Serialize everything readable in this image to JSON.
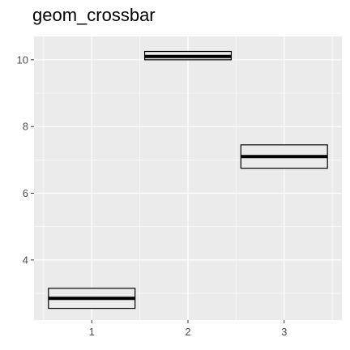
{
  "chart_data": {
    "type": "crossbar",
    "title": "geom_crossbar",
    "xlabel": "",
    "ylabel": "",
    "categories": [
      "1",
      "2",
      "3"
    ],
    "x": [
      1,
      2,
      3
    ],
    "y": [
      2.85,
      10.1,
      7.1
    ],
    "ymin": [
      2.55,
      10.0,
      6.75
    ],
    "ymax": [
      3.15,
      10.25,
      7.45
    ],
    "xlim": [
      0.4,
      3.6
    ],
    "ylim": [
      2.2,
      10.7
    ],
    "y_ticks": [
      4,
      6,
      8,
      10
    ],
    "x_ticks": [
      1,
      2,
      3
    ],
    "grid": true,
    "colors": {
      "panel": "#ebebeb",
      "grid": "#ffffff",
      "box_fill": "#ebebeb",
      "box_stroke": "#000000",
      "tick_text": "#4d4d4d"
    }
  }
}
